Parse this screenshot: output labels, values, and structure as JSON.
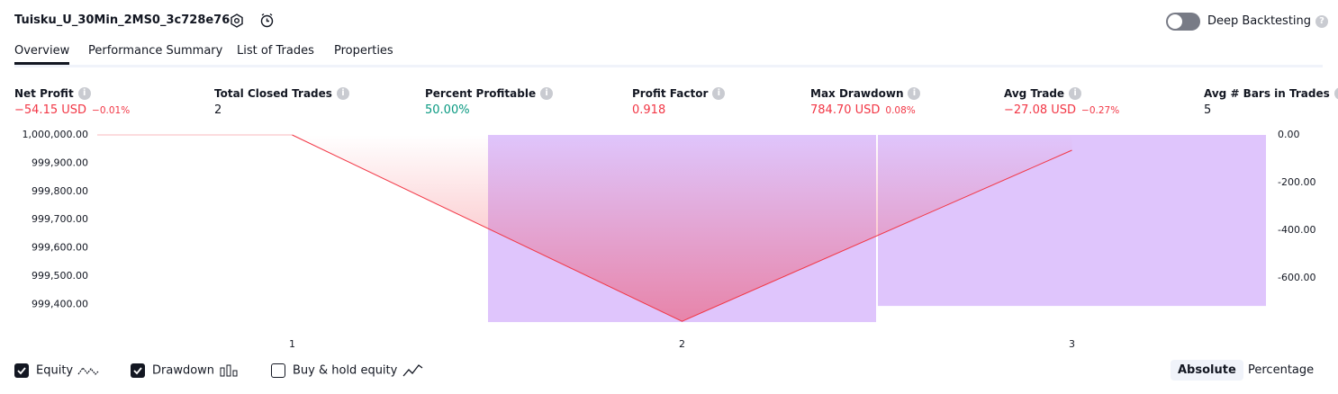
{
  "header": {
    "title": "Tuisku_U_30Min_2MS0_3c728e76",
    "deep_backtesting": "Deep Backtesting"
  },
  "tabs": [
    "Overview",
    "Performance Summary",
    "List of Trades",
    "Properties"
  ],
  "metrics": [
    {
      "label": "Net Profit",
      "value": "−54.15 USD",
      "sub": "−0.01%",
      "color": "#f23645"
    },
    {
      "label": "Total Closed Trades",
      "value": "2",
      "color": "#131722"
    },
    {
      "label": "Percent Profitable",
      "value": "50.00%",
      "color": "#089981"
    },
    {
      "label": "Profit Factor",
      "value": "0.918",
      "color": "#f23645"
    },
    {
      "label": "Max Drawdown",
      "value": "784.70 USD",
      "sub": "0.08%",
      "color": "#f23645"
    },
    {
      "label": "Avg Trade",
      "value": "−27.08 USD",
      "sub": "−0.27%",
      "color": "#f23645"
    },
    {
      "label": "Avg # Bars in Trades",
      "value": "5",
      "color": "#131722"
    }
  ],
  "chart_data": {
    "type": "line",
    "categories": [
      "1",
      "2",
      "3"
    ],
    "series": [
      {
        "name": "Equity",
        "color": "#f23645",
        "values": [
          1000000,
          999340,
          999945.85
        ]
      },
      {
        "name": "Drawdown",
        "color": "#dfc5fc",
        "axis": "y2",
        "type": "bar",
        "values": [
          0,
          -784.7,
          -717
        ]
      }
    ],
    "ylim": [
      999331,
      1000000
    ],
    "yticks": [
      {
        "value": 1000000,
        "label": "1,000,000.00"
      },
      {
        "value": 999900,
        "label": "999,900.00"
      },
      {
        "value": 999800,
        "label": "999,800.00"
      },
      {
        "value": 999700,
        "label": "999,700.00"
      },
      {
        "value": 999600,
        "label": "999,600.00"
      },
      {
        "value": 999500,
        "label": "999,500.00"
      },
      {
        "value": 999400,
        "label": "999,400.00"
      }
    ],
    "y2lim": [
      -792,
      0
    ],
    "y2ticks": [
      {
        "value": 0,
        "label": "0.00"
      },
      {
        "value": -200,
        "label": "-200.00"
      },
      {
        "value": -400,
        "label": "-400.00"
      },
      {
        "value": -600,
        "label": "-600.00"
      }
    ]
  },
  "footer": {
    "buy_hold": "Buy & hold equity",
    "modes": [
      "Absolute",
      "Percentage"
    ]
  }
}
